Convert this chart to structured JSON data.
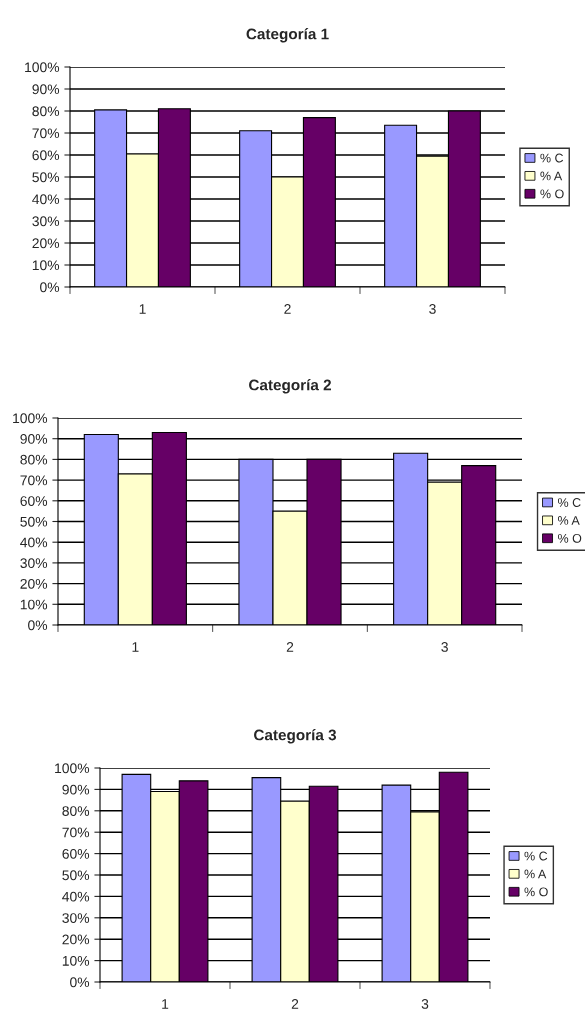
{
  "chart_data": [
    {
      "type": "bar",
      "title": "Categoría 1",
      "categories": [
        "1",
        "2",
        "3"
      ],
      "ylim": [
        0,
        100
      ],
      "yticks": [
        {
          "value": 0,
          "label": "0%"
        },
        {
          "value": 10,
          "label": "10%"
        },
        {
          "value": 20,
          "label": "20%"
        },
        {
          "value": 30,
          "label": "30%"
        },
        {
          "value": 40,
          "label": "40%"
        },
        {
          "value": 50,
          "label": "50%"
        },
        {
          "value": 60,
          "label": "60%"
        },
        {
          "value": 70,
          "label": "70%"
        },
        {
          "value": 80,
          "label": "80%"
        },
        {
          "value": 90,
          "label": "90%"
        },
        {
          "value": 100,
          "label": "100%"
        }
      ],
      "grid": "y",
      "legend": "right",
      "series": [
        {
          "name": "% C",
          "color": "#9999ff",
          "values": [
            80.5,
            71,
            73.5
          ]
        },
        {
          "name": "% A",
          "color": "#ffffcc",
          "values": [
            60.5,
            50,
            59.5
          ]
        },
        {
          "name": "% O",
          "color": "#660066",
          "values": [
            81,
            77,
            80
          ]
        }
      ]
    },
    {
      "type": "bar",
      "title": "Categoría 2",
      "categories": [
        "1",
        "2",
        "3"
      ],
      "ylim": [
        0,
        100
      ],
      "yticks": [
        {
          "value": 0,
          "label": "0%"
        },
        {
          "value": 10,
          "label": "10%"
        },
        {
          "value": 20,
          "label": "20%"
        },
        {
          "value": 30,
          "label": "30%"
        },
        {
          "value": 40,
          "label": "40%"
        },
        {
          "value": 50,
          "label": "50%"
        },
        {
          "value": 60,
          "label": "60%"
        },
        {
          "value": 70,
          "label": "70%"
        },
        {
          "value": 80,
          "label": "80%"
        },
        {
          "value": 90,
          "label": "90%"
        },
        {
          "value": 100,
          "label": "100%"
        }
      ],
      "grid": "y",
      "legend": "right",
      "series": [
        {
          "name": "% C",
          "color": "#9999ff",
          "values": [
            92,
            80,
            83
          ]
        },
        {
          "name": "% A",
          "color": "#ffffcc",
          "values": [
            73,
            55,
            69
          ]
        },
        {
          "name": "% O",
          "color": "#660066",
          "values": [
            93,
            80,
            77
          ]
        }
      ]
    },
    {
      "type": "bar",
      "title": "Categoría 3",
      "categories": [
        "1",
        "2",
        "3"
      ],
      "ylim": [
        0,
        100
      ],
      "yticks": [
        {
          "value": 0,
          "label": "0%"
        },
        {
          "value": 10,
          "label": "10%"
        },
        {
          "value": 20,
          "label": "20%"
        },
        {
          "value": 30,
          "label": "30%"
        },
        {
          "value": 40,
          "label": "40%"
        },
        {
          "value": 50,
          "label": "50%"
        },
        {
          "value": 60,
          "label": "60%"
        },
        {
          "value": 70,
          "label": "70%"
        },
        {
          "value": 80,
          "label": "80%"
        },
        {
          "value": 90,
          "label": "90%"
        },
        {
          "value": 100,
          "label": "100%"
        }
      ],
      "grid": "y",
      "legend": "right",
      "series": [
        {
          "name": "% C",
          "color": "#9999ff",
          "values": [
            97,
            95.5,
            92
          ]
        },
        {
          "name": "% A",
          "color": "#ffffcc",
          "values": [
            89,
            84.5,
            79.5
          ]
        },
        {
          "name": "% O",
          "color": "#660066",
          "values": [
            94,
            91.5,
            98
          ]
        }
      ]
    }
  ]
}
